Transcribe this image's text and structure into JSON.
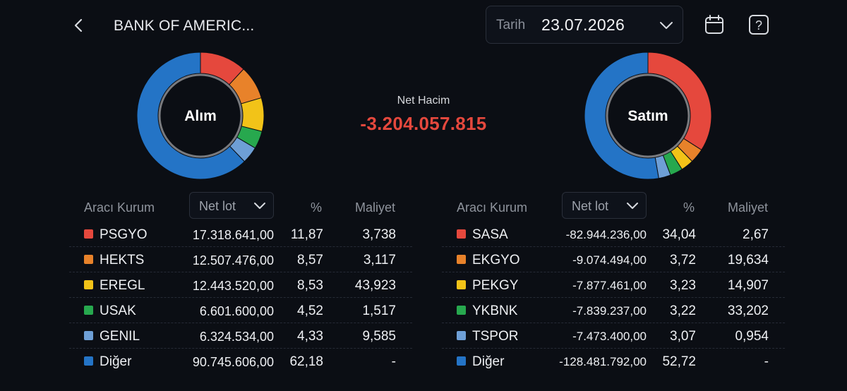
{
  "header": {
    "title": "BANK OF AMERIC...",
    "date_label": "Tarih",
    "date_value": "23.07.2026"
  },
  "summary": {
    "net_label": "Net Hacim",
    "net_value": "-3.204.057.815"
  },
  "colors": {
    "red": "#e5483d",
    "orange": "#e8822a",
    "yellow": "#f2c318",
    "green": "#27a84e",
    "light_blue": "#6e9fd6",
    "blue": "#2474c6"
  },
  "buy": {
    "chart_label": "Alım",
    "header": {
      "broker": "Aracı Kurum",
      "select": "Net lot",
      "pct": "%",
      "cost": "Maliyet"
    },
    "rows": [
      {
        "name": "PSGYO",
        "lot": "17.318.641,00",
        "pct": "11,87",
        "cost": "3,738",
        "color": "#e5483d"
      },
      {
        "name": "HEKTS",
        "lot": "12.507.476,00",
        "pct": "8,57",
        "cost": "3,117",
        "color": "#e8822a"
      },
      {
        "name": "EREGL",
        "lot": "12.443.520,00",
        "pct": "8,53",
        "cost": "43,923",
        "color": "#f2c318"
      },
      {
        "name": "USAK",
        "lot": "6.601.600,00",
        "pct": "4,52",
        "cost": "1,517",
        "color": "#27a84e"
      },
      {
        "name": "GENIL",
        "lot": "6.324.534,00",
        "pct": "4,33",
        "cost": "9,585",
        "color": "#6e9fd6"
      },
      {
        "name": "Diğer",
        "lot": "90.745.606,00",
        "pct": "62,18",
        "cost": "-",
        "color": "#2474c6"
      }
    ]
  },
  "sell": {
    "chart_label": "Satım",
    "header": {
      "broker": "Aracı Kurum",
      "select": "Net lot",
      "pct": "%",
      "cost": "Maliyet"
    },
    "rows": [
      {
        "name": "SASA",
        "lot": "-82.944.236,00",
        "pct": "34,04",
        "cost": "2,67",
        "color": "#e5483d"
      },
      {
        "name": "EKGYO",
        "lot": "-9.074.494,00",
        "pct": "3,72",
        "cost": "19,634",
        "color": "#e8822a"
      },
      {
        "name": "PEKGY",
        "lot": "-7.877.461,00",
        "pct": "3,23",
        "cost": "14,907",
        "color": "#f2c318"
      },
      {
        "name": "YKBNK",
        "lot": "-7.839.237,00",
        "pct": "3,22",
        "cost": "33,202",
        "color": "#27a84e"
      },
      {
        "name": "TSPOR",
        "lot": "-7.473.400,00",
        "pct": "3,07",
        "cost": "0,954",
        "color": "#6e9fd6"
      },
      {
        "name": "Diğer",
        "lot": "-128.481.792,00",
        "pct": "52,72",
        "cost": "-",
        "color": "#2474c6"
      }
    ]
  },
  "chart_data": [
    {
      "type": "pie",
      "categories": [
        "PSGYO",
        "HEKTS",
        "EREGL",
        "USAK",
        "GENIL",
        "Diğer"
      ],
      "values": [
        11.87,
        8.57,
        8.53,
        4.52,
        4.33,
        62.18
      ],
      "title": "Alım"
    },
    {
      "type": "pie",
      "categories": [
        "SASA",
        "EKGYO",
        "PEKGY",
        "YKBNK",
        "TSPOR",
        "Diğer"
      ],
      "values": [
        34.04,
        3.72,
        3.23,
        3.22,
        3.07,
        52.72
      ],
      "title": "Satım"
    }
  ]
}
